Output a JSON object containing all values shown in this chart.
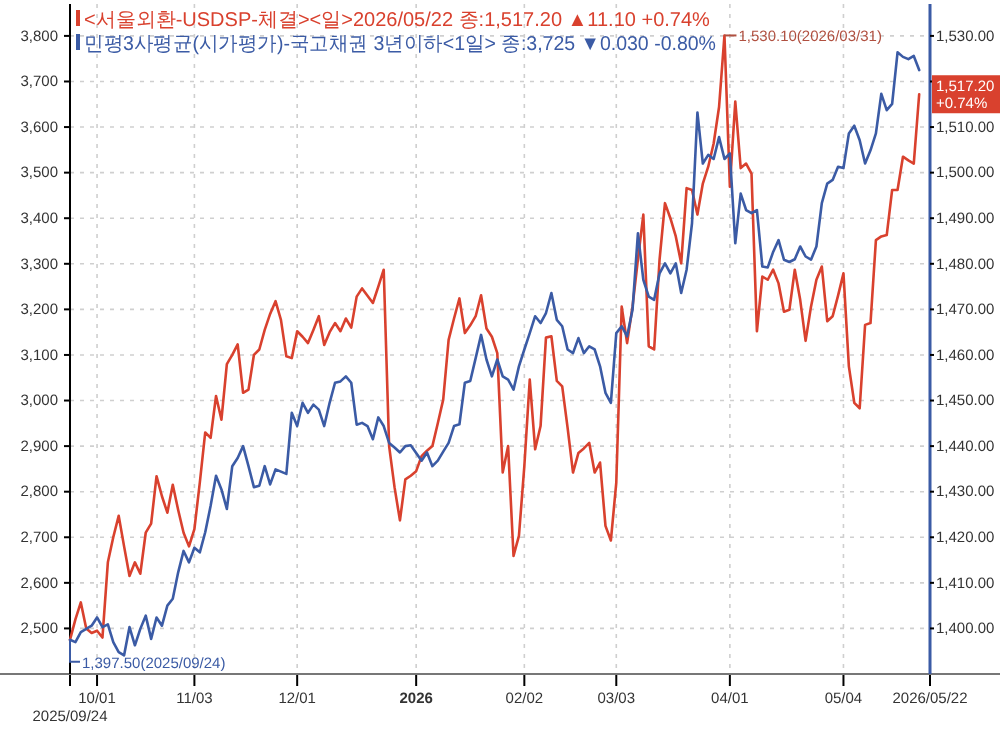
{
  "chart_data": {
    "type": "line",
    "categories": [
      "2025/09/24",
      null,
      null,
      null,
      null,
      "10/01",
      null,
      null,
      null,
      null,
      null,
      null,
      null,
      null,
      null,
      null,
      null,
      null,
      null,
      null,
      null,
      null,
      null,
      "11/03",
      null,
      null,
      null,
      null,
      null,
      null,
      null,
      null,
      null,
      null,
      null,
      null,
      null,
      null,
      null,
      null,
      null,
      null,
      "12/01",
      null,
      null,
      null,
      null,
      null,
      null,
      null,
      null,
      null,
      null,
      null,
      null,
      null,
      null,
      null,
      null,
      null,
      null,
      null,
      null,
      null,
      "2026",
      null,
      null,
      null,
      null,
      null,
      null,
      null,
      null,
      null,
      null,
      null,
      null,
      null,
      null,
      null,
      null,
      null,
      null,
      null,
      "02/02",
      null,
      null,
      null,
      null,
      null,
      null,
      null,
      null,
      null,
      null,
      null,
      null,
      null,
      null,
      null,
      null,
      "03/03",
      null,
      null,
      null,
      null,
      null,
      null,
      null,
      null,
      null,
      null,
      null,
      null,
      null,
      null,
      null,
      null,
      null,
      null,
      null,
      null,
      "04/01",
      null,
      null,
      null,
      null,
      null,
      null,
      null,
      null,
      null,
      null,
      null,
      null,
      null,
      null,
      null,
      null,
      null,
      null,
      null,
      null,
      "05/04",
      null,
      null,
      null,
      null,
      null,
      null,
      null,
      null,
      null,
      null,
      null,
      null,
      null,
      null,
      null,
      "2026/05/22"
    ],
    "ylim": [
      2400,
      3870
    ],
    "yticks": [
      {
        "value": 2500,
        "label": "2,500"
      },
      {
        "value": 2600,
        "label": "2,600"
      },
      {
        "value": 2700,
        "label": "2,700"
      },
      {
        "value": 2800,
        "label": "2,800"
      },
      {
        "value": 2900,
        "label": "2,900"
      },
      {
        "value": 3000,
        "label": "3,000"
      },
      {
        "value": 3100,
        "label": "3,100"
      },
      {
        "value": 3200,
        "label": "3,200"
      },
      {
        "value": 3300,
        "label": "3,300"
      },
      {
        "value": 3400,
        "label": "3,400"
      },
      {
        "value": 3500,
        "label": "3,500"
      },
      {
        "value": 3600,
        "label": "3,600"
      },
      {
        "value": 3700,
        "label": "3,700"
      },
      {
        "value": 3800,
        "label": "3,800"
      }
    ],
    "y2lim": [
      1390,
      1537
    ],
    "y2ticks": [
      {
        "value": 1400,
        "label": "1,400.00"
      },
      {
        "value": 1410,
        "label": "1,410.00"
      },
      {
        "value": 1420,
        "label": "1,420.00"
      },
      {
        "value": 1430,
        "label": "1,430.00"
      },
      {
        "value": 1440,
        "label": "1,440.00"
      },
      {
        "value": 1450,
        "label": "1,450.00"
      },
      {
        "value": 1460,
        "label": "1,460.00"
      },
      {
        "value": 1470,
        "label": "1,470.00"
      },
      {
        "value": 1480,
        "label": "1,480.00"
      },
      {
        "value": 1490,
        "label": "1,490.00"
      },
      {
        "value": 1500,
        "label": "1,500.00"
      },
      {
        "value": 1510,
        "label": "1,510.00"
      },
      {
        "value": 1520,
        "label": null
      },
      {
        "value": 1530,
        "label": "1,530.00"
      }
    ],
    "grid": true,
    "legend": "top left",
    "series": [
      {
        "name": "<서울외환-USDSP-체결><일>2026/05/22 종:1,517.20 ▲11.10 +0.74%",
        "color": "#d9412e",
        "axis": "y2",
        "values": [
          1397.5,
          1402,
          1405.7,
          1400,
          1399,
          1399.5,
          1398,
          1414.5,
          1420,
          1424.7,
          1418,
          1411.5,
          1414.5,
          1412,
          1421,
          1423,
          1433.4,
          1429,
          1425.4,
          1431.5,
          1426,
          1421,
          1418,
          1421.8,
          1432,
          1443,
          1441.8,
          1451,
          1445.8,
          1458,
          1460,
          1462.3,
          1451.7,
          1452.4,
          1460,
          1461.2,
          1465.5,
          1469,
          1471.8,
          1467.7,
          1459.7,
          1459.3,
          1465.2,
          1464,
          1462.6,
          1465.5,
          1468.5,
          1462.2,
          1465,
          1467,
          1465.2,
          1468,
          1466,
          1472.8,
          1474.6,
          1473,
          1471.4,
          1475,
          1478.7,
          1440,
          1431,
          1423.7,
          1432.7,
          1433.5,
          1434.5,
          1437.8,
          1439,
          1440,
          1445,
          1450.2,
          1463.3,
          1468,
          1472.4,
          1464.8,
          1466.5,
          1468.5,
          1473.1,
          1465.8,
          1464,
          1460.4,
          1434.2,
          1440,
          1415.9,
          1420.3,
          1435.6,
          1454.6,
          1439.3,
          1444.4,
          1463.8,
          1464.1,
          1454.3,
          1453.1,
          1444,
          1434.2,
          1438.5,
          1439.5,
          1440.7,
          1434.2,
          1436.4,
          1422.5,
          1419.3,
          1432,
          1470.6,
          1462.6,
          1470.6,
          1481,
          1490.8,
          1461.9,
          1461.2,
          1480.9,
          1493.3,
          1490,
          1486,
          1480.1,
          1496.6,
          1496.2,
          1490.8,
          1497.6,
          1501.3,
          1506.4,
          1514.4,
          1530.1,
          1496.9,
          1515.6,
          1501,
          1502,
          1499.8,
          1465.2,
          1477.2,
          1476.5,
          1478.7,
          1475.7,
          1469.5,
          1469.9,
          1478.7,
          1472.1,
          1463.1,
          1470.6,
          1476.5,
          1479.4,
          1467.4,
          1468.5,
          1473,
          1477.9,
          1457.5,
          1449.5,
          1448.3,
          1466.6,
          1467,
          1485.2,
          1486,
          1486.3,
          1496.2,
          1496.2,
          1503.5,
          1502.7,
          1502,
          1517.2,
          null,
          null
        ]
      },
      {
        "name": "민평3사평균(시가평가)-국고채권 3년이하<1일> 종:3,725 ▼0.030 -0.80%",
        "color": "#3b5ba5",
        "values": [
          2475,
          2470,
          2492,
          2499,
          2506,
          2524,
          2503,
          2509,
          2470,
          2448,
          2441,
          2503,
          2463,
          2499,
          2528,
          2477,
          2524,
          2506,
          2550,
          2565,
          2623,
          2670,
          2645,
          2677,
          2667,
          2711,
          2769,
          2835,
          2805,
          2762,
          2856,
          2874,
          2900,
          2856,
          2810,
          2813,
          2856,
          2816,
          2849,
          2844,
          2839,
          2973,
          2944,
          2995,
          2973,
          2991,
          2980,
          2944,
          2995,
          3039,
          3042,
          3053,
          3039,
          2947,
          2951,
          2944,
          2915,
          2963,
          2944,
          2907,
          2897,
          2886,
          2900,
          2902,
          2885,
          2868,
          2886,
          2856,
          2868,
          2888,
          2907,
          2944,
          2948,
          3039,
          3043,
          3093,
          3144,
          3090,
          3053,
          3090,
          3053,
          3046,
          3024,
          3075,
          3112,
          3148,
          3185,
          3170,
          3192,
          3236,
          3177,
          3163,
          3112,
          3104,
          3137,
          3104,
          3119,
          3112,
          3075,
          3017,
          2995,
          3148,
          3163,
          3141,
          3199,
          3367,
          3265,
          3228,
          3221,
          3279,
          3301,
          3279,
          3301,
          3236,
          3287,
          3389,
          3632,
          3520,
          3539,
          3530,
          3578,
          3530,
          3542,
          3345,
          3454,
          3418,
          3411,
          3418,
          3294,
          3292,
          3326,
          3352,
          3309,
          3304,
          3310,
          3338,
          3316,
          3309,
          3338,
          3433,
          3476,
          3484,
          3513,
          3510,
          3586,
          3603,
          3571,
          3520,
          3549,
          3586,
          3673,
          3637,
          3651,
          3764,
          3754,
          3749,
          3756,
          3725,
          null,
          null
        ]
      }
    ],
    "annotations": [
      "1,397.50(2025/09/24)",
      "1,530.10(2026/03/31)",
      "1,517.20 +0.74%"
    ]
  }
}
